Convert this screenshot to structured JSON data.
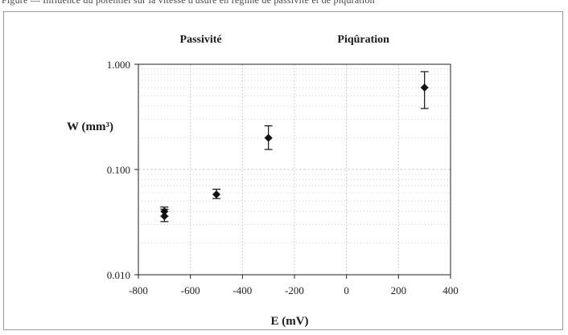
{
  "caption": "Figure — Influence du potentiel sur la vitesse d'usure en régime de passivité et de piqûration",
  "chart_data": {
    "type": "scatter",
    "xlabel": "E (mV)",
    "ylabel": "W (mm³)",
    "xlim": [
      -800,
      400
    ],
    "ylim": [
      0.01,
      1
    ],
    "yscale": "log",
    "grid": true,
    "xticks": [
      -800,
      -600,
      -400,
      -200,
      0,
      200,
      400
    ],
    "xtick_labels": [
      "-800",
      "-600",
      "-400",
      "-200",
      "0",
      "200",
      "400"
    ],
    "yticks": [
      0.01,
      0.1,
      1
    ],
    "ytick_labels": [
      "0.010",
      "0.100",
      "1.000"
    ],
    "regions": [
      {
        "label": "Passivité"
      },
      {
        "label": "Piqûration"
      }
    ],
    "points": [
      {
        "x": -700,
        "y": 0.036,
        "err_low": 0.032,
        "err_high": 0.042
      },
      {
        "x": -700,
        "y": 0.04,
        "err_low": 0.036,
        "err_high": 0.044
      },
      {
        "x": -500,
        "y": 0.058,
        "err_low": 0.053,
        "err_high": 0.065
      },
      {
        "x": -300,
        "y": 0.2,
        "err_low": 0.155,
        "err_high": 0.26
      },
      {
        "x": 300,
        "y": 0.6,
        "err_low": 0.38,
        "err_high": 0.85
      }
    ],
    "marker_color": "#111111",
    "grid_color": "#cfcfcf"
  }
}
